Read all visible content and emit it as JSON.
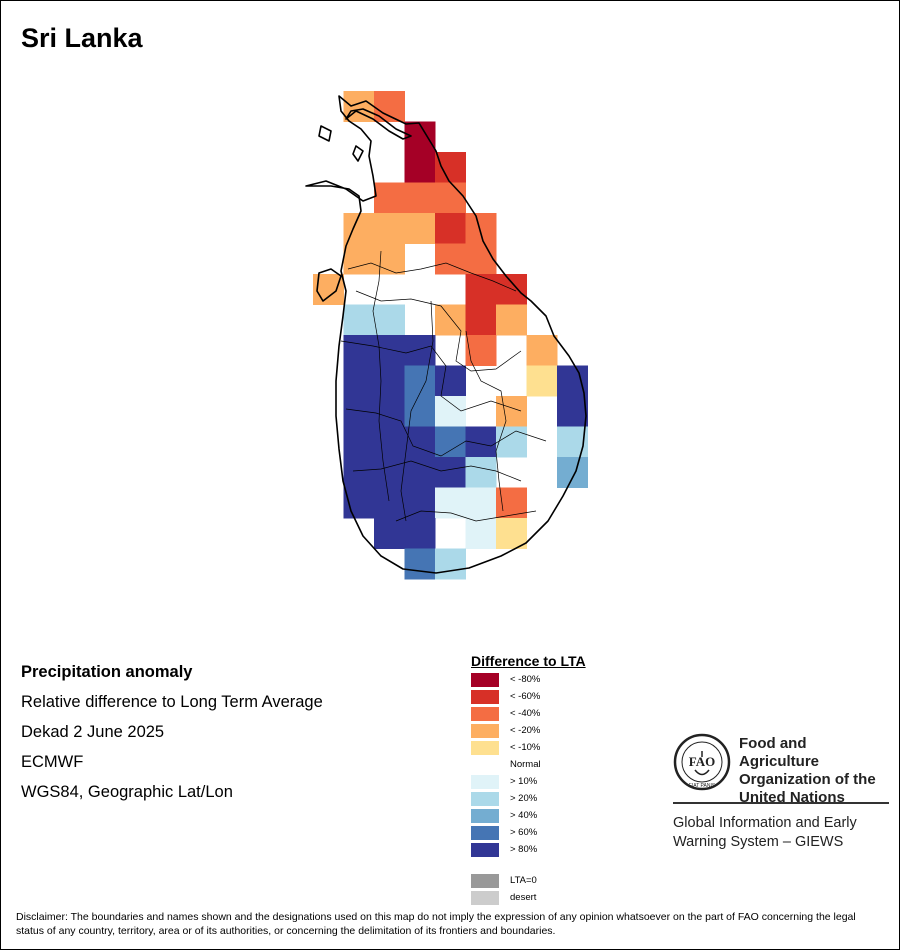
{
  "title": "Sri Lanka",
  "info": {
    "heading": "Precipitation anomaly",
    "line1": "Relative difference to Long Term Average",
    "line2": "Dekad 2 June 2025",
    "line3": "ECMWF",
    "line4": "WGS84, Geographic Lat/Lon"
  },
  "legend": {
    "title": "Difference to LTA",
    "items": [
      {
        "label": "< -80%",
        "color": "#a50026"
      },
      {
        "label": "< -60%",
        "color": "#d73027"
      },
      {
        "label": "< -40%",
        "color": "#f46d43"
      },
      {
        "label": "< -20%",
        "color": "#fdae61"
      },
      {
        "label": "< -10%",
        "color": "#fee090"
      },
      {
        "label": "Normal",
        "color": "#ffffff"
      },
      {
        "label": "> 10%",
        "color": "#e0f3f8"
      },
      {
        "label": "> 20%",
        "color": "#abd9e9"
      },
      {
        "label": "> 40%",
        "color": "#74add1"
      },
      {
        "label": "> 60%",
        "color": "#4575b4"
      },
      {
        "label": "> 80%",
        "color": "#313695"
      }
    ],
    "extra": [
      {
        "label": "LTA=0",
        "color": "#999999"
      },
      {
        "label": "desert",
        "color": "#cccccc"
      }
    ]
  },
  "fao": {
    "org_line1": "Food and Agriculture",
    "org_line2": "Organization of the",
    "org_line3": "United Nations",
    "logo_text": "FAO",
    "motto": "FIAT PANIS",
    "giews_line1": "Global Information and Early",
    "giews_line2": "Warning System – GIEWS"
  },
  "disclaimer": "Disclaimer: The boundaries and names shown and the designations used on this map do not imply the expression of any opinion whatsoever on the part of FAO concerning the legal status of any country, territory, area or of its authorities, or concerning the delimitation of its frontiers and boundaries.",
  "grid": {
    "cols": 9,
    "rows": 16,
    "cells": [
      ".DC......",
      "...A.....",
      "...AB....",
      "..CCC....",
      ".DDDBC...",
      ".DD.CC...",
      "D....BB..",
      ".HH.DBD..",
      ".KKK.C.D.",
      ".KKJK..EK",
      ".KKJG.D.K",
      ".KKKJKH.H",
      ".KKKKH..I",
      ".KKKGGC..",
      "..KK.GE..",
      "...JH...."
    ]
  }
}
